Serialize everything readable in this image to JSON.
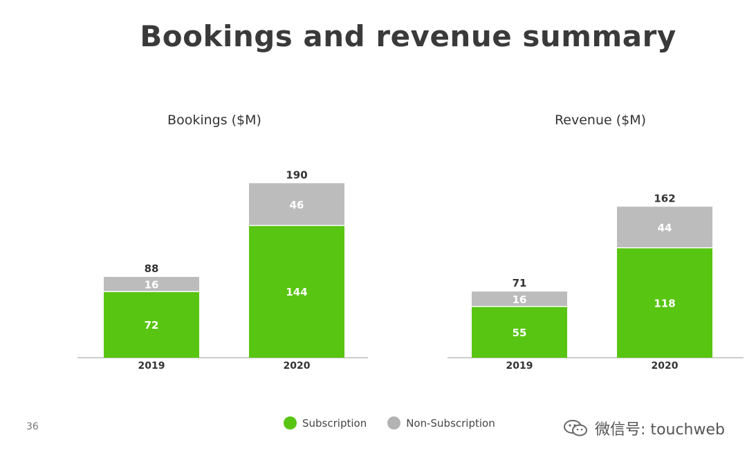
{
  "title": "Bookings and revenue summary",
  "page_number": "36",
  "colors": {
    "subscription": "#58c512",
    "non_subscription": "#bcbcbc",
    "title": "#3a3a3a",
    "label_dark": "#333333",
    "label_light": "#ffffff"
  },
  "legend": [
    {
      "label": "Subscription",
      "color": "#58c512"
    },
    {
      "label": "Non-Subscription",
      "color": "#b3b3b3"
    }
  ],
  "watermark": {
    "text": "微信号: touchweb",
    "icon": "wechat-icon"
  },
  "chart_data": [
    {
      "type": "bar",
      "stacked": true,
      "title": "Bookings ($M)",
      "categories": [
        "2019",
        "2020"
      ],
      "series": [
        {
          "name": "Subscription",
          "values": [
            72,
            144
          ]
        },
        {
          "name": "Non-Subscription",
          "values": [
            16,
            46
          ]
        }
      ],
      "totals": [
        88,
        190
      ],
      "ylim": [
        0,
        200
      ],
      "grid": false
    },
    {
      "type": "bar",
      "stacked": true,
      "title": "Revenue ($M)",
      "categories": [
        "2019",
        "2020"
      ],
      "series": [
        {
          "name": "Subscription",
          "values": [
            55,
            118
          ]
        },
        {
          "name": "Non-Subscription",
          "values": [
            16,
            44
          ]
        }
      ],
      "totals": [
        71,
        162
      ],
      "ylim": [
        0,
        200
      ],
      "grid": false
    }
  ]
}
